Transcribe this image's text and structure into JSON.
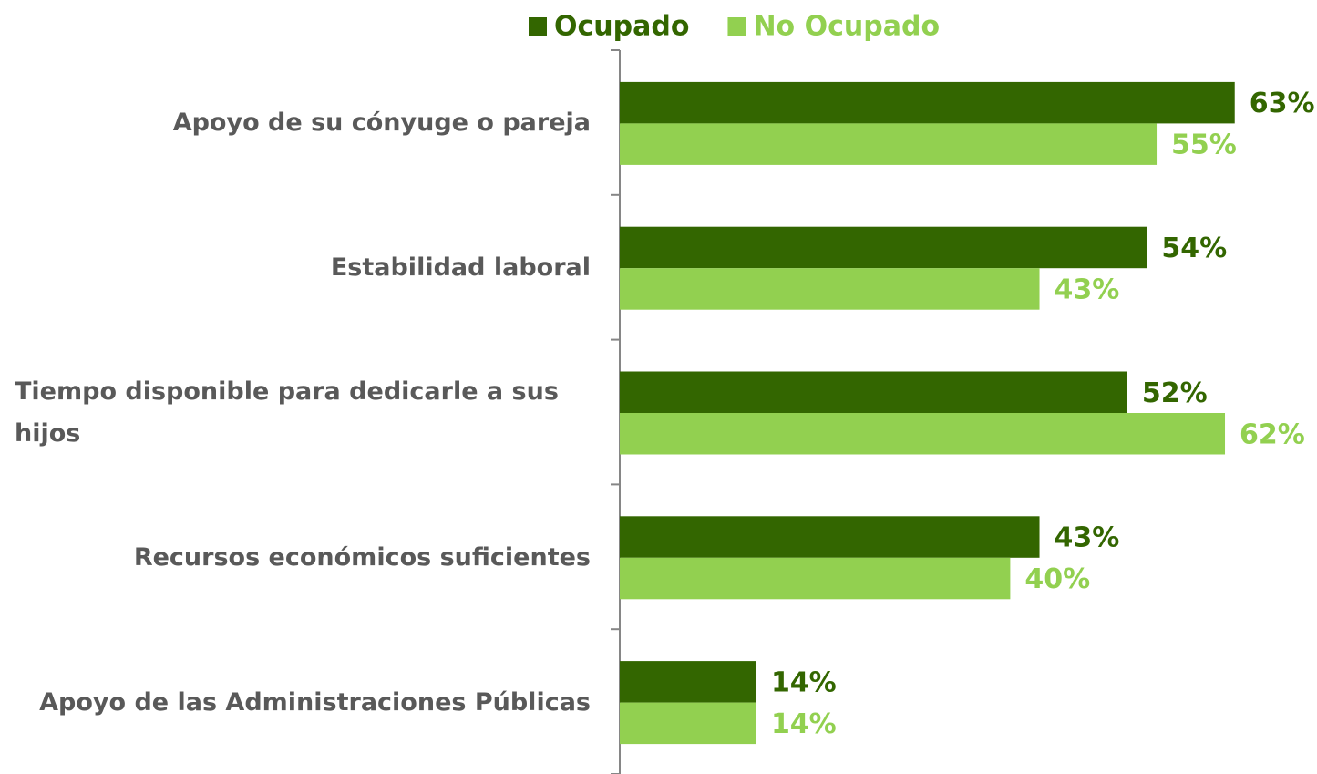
{
  "chart_data": {
    "type": "barh",
    "categories": [
      "Apoyo de su cónyuge o pareja",
      "Estabilidad laboral",
      "Tiempo disponible para dedicarle a sus hijos",
      "Recursos económicos suficientes",
      "Apoyo de las Administraciones Públicas"
    ],
    "series": [
      {
        "name": "Ocupado",
        "color": "#336600",
        "values": [
          63,
          54,
          52,
          43,
          14
        ],
        "value_labels": [
          "63%",
          "54%",
          "52%",
          "43%",
          "14%"
        ]
      },
      {
        "name": "No Ocupado",
        "color": "#92d050",
        "values": [
          55,
          43,
          62,
          40,
          14
        ],
        "value_labels": [
          "55%",
          "43%",
          "62%",
          "40%",
          "14%"
        ]
      }
    ],
    "legend": "top"
  }
}
